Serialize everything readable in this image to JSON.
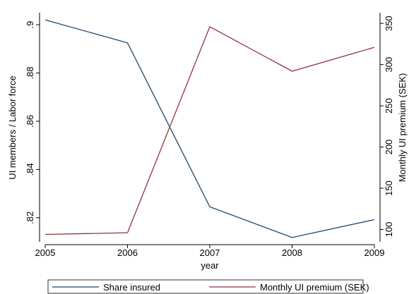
{
  "chart_data": {
    "type": "line",
    "x": [
      2005,
      2006,
      2007,
      2008,
      2009
    ],
    "xlim": [
      2005,
      2009
    ],
    "xticks": [
      2005,
      2006,
      2007,
      2008,
      2009
    ],
    "x_label": "year",
    "y_label": "UI members / Labor force",
    "y2_label": "Monthly UI premium (SEK)",
    "ylim": [
      0.81,
      0.905
    ],
    "yticks": [
      {
        "value": 0.82,
        "label": ".82"
      },
      {
        "value": 0.84,
        "label": ".84"
      },
      {
        "value": 0.86,
        "label": ".86"
      },
      {
        "value": 0.88,
        "label": ".88"
      },
      {
        "value": 0.9,
        "label": ".9"
      }
    ],
    "y2lim": [
      85,
      363
    ],
    "y2ticks": [
      100,
      150,
      200,
      250,
      300,
      350
    ],
    "legend": "bottom",
    "series": [
      {
        "name": "Share insured",
        "color": "#1a476f",
        "values": [
          0.902,
          0.8925,
          0.8245,
          0.8118,
          0.8192
        ]
      },
      {
        "name": "Monthly UI premium (SEK)",
        "color": "#90353b",
        "axis": "y2",
        "values": [
          94,
          96,
          346,
          292,
          321
        ]
      }
    ]
  }
}
